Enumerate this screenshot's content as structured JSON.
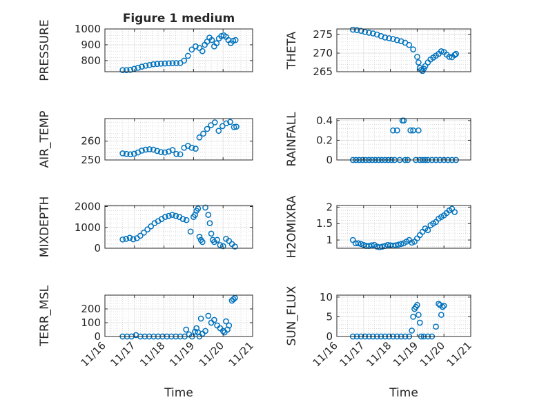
{
  "title": "Figure 1 medium",
  "colors": {
    "marker": "#0072BD",
    "axis": "#262626",
    "grid": "#c8c8c8",
    "background": "#ffffff"
  },
  "x_axis": {
    "label": "Time",
    "ticks": [
      "11/16",
      "11/17",
      "11/18",
      "11/19",
      "11/20",
      "11/21"
    ]
  },
  "chart_data": [
    {
      "type": "scatter",
      "title": "Figure 1 medium",
      "ylabel": "PRESSURE",
      "xlabel": "",
      "ylim": [
        730,
        1000
      ],
      "yticks": [
        800,
        900,
        1000
      ],
      "series": [
        {
          "x": [
            0.6,
            0.73,
            0.86,
            0.99,
            1.12,
            1.25,
            1.38,
            1.51,
            1.64,
            1.77,
            1.9,
            2.03,
            2.16,
            2.29,
            2.42,
            2.55,
            2.68,
            2.81,
            2.94,
            3.07,
            3.2,
            3.3,
            3.38,
            3.46,
            3.54,
            3.62,
            3.7,
            3.78,
            3.86,
            3.94,
            4.02,
            4.1,
            4.18,
            4.26,
            4.34,
            4.42
          ],
          "values": [
            740,
            740,
            742,
            748,
            755,
            762,
            768,
            772,
            777,
            779,
            781,
            782,
            783,
            784,
            784,
            785,
            800,
            830,
            870,
            890,
            880,
            860,
            900,
            920,
            945,
            930,
            890,
            910,
            940,
            955,
            960,
            950,
            930,
            910,
            925,
            930
          ]
        }
      ]
    },
    {
      "type": "scatter",
      "ylabel": "THETA",
      "ylim": [
        265,
        276.5
      ],
      "yticks": [
        265,
        270,
        275
      ],
      "series": [
        {
          "x": [
            0.6,
            0.75,
            0.9,
            1.05,
            1.2,
            1.35,
            1.5,
            1.65,
            1.8,
            1.95,
            2.1,
            2.25,
            2.4,
            2.55,
            2.7,
            2.85,
            3.0,
            3.05,
            3.1,
            3.15,
            3.2,
            3.25,
            3.3,
            3.4,
            3.5,
            3.6,
            3.7,
            3.8,
            3.9,
            4.0,
            4.1,
            4.2,
            4.3,
            4.4,
            4.45
          ],
          "values": [
            276.3,
            276.2,
            276.0,
            275.7,
            275.5,
            275.3,
            275.0,
            274.6,
            274.2,
            274.0,
            273.8,
            273.5,
            273.2,
            272.8,
            272.2,
            271.0,
            269.0,
            267.5,
            266.0,
            265.5,
            265.2,
            265.8,
            266.5,
            267.5,
            268.3,
            268.8,
            269.3,
            269.8,
            270.5,
            270.3,
            269.6,
            269.0,
            268.9,
            269.5,
            269.8
          ]
        }
      ]
    },
    {
      "type": "scatter",
      "ylabel": "AIR_TEMP",
      "ylim": [
        250,
        272
      ],
      "yticks": [
        250,
        260
      ],
      "series": [
        {
          "x": [
            0.6,
            0.73,
            0.86,
            0.99,
            1.12,
            1.25,
            1.38,
            1.51,
            1.64,
            1.77,
            1.9,
            2.03,
            2.16,
            2.29,
            2.42,
            2.55,
            2.68,
            2.81,
            2.94,
            3.07,
            3.2,
            3.33,
            3.46,
            3.59,
            3.72,
            3.85,
            3.98,
            4.11,
            4.24,
            4.37,
            4.45
          ],
          "values": [
            253.5,
            253.2,
            253.0,
            253.3,
            254.0,
            255.0,
            255.5,
            255.7,
            255.5,
            254.8,
            254.2,
            254.0,
            254.5,
            255.3,
            253.2,
            253.0,
            256.5,
            257.5,
            256.5,
            256.0,
            262.0,
            264.0,
            266.5,
            268.5,
            270.0,
            265.5,
            268.0,
            269.5,
            270.2,
            267.5,
            267.7
          ]
        }
      ]
    },
    {
      "type": "scatter",
      "ylabel": "RAINFALL",
      "ylim": [
        0,
        0.42
      ],
      "yticks": [
        0,
        0.2,
        0.4
      ],
      "series": [
        {
          "x": [
            0.6,
            0.72,
            0.84,
            0.96,
            1.08,
            1.2,
            1.32,
            1.44,
            1.56,
            1.68,
            1.8,
            1.92,
            2.04,
            2.1,
            2.16,
            2.25,
            2.35,
            2.45,
            2.5,
            2.55,
            2.65,
            2.75,
            2.85,
            2.95,
            3.05,
            3.1,
            3.2,
            3.3,
            3.4,
            3.55,
            3.7,
            3.85,
            4.0,
            4.15,
            4.3,
            4.45
          ],
          "values": [
            0,
            0,
            0,
            0,
            0,
            0,
            0,
            0,
            0,
            0,
            0,
            0,
            0,
            0.3,
            0,
            0.3,
            0,
            0.4,
            0.4,
            0,
            0,
            0.3,
            0.3,
            0,
            0.3,
            0,
            0,
            0,
            0,
            0,
            0,
            0,
            0,
            0,
            0,
            0
          ]
        }
      ]
    },
    {
      "type": "scatter",
      "ylabel": "MIXDEPTH",
      "ylim": [
        0,
        2050
      ],
      "yticks": [
        0,
        1000,
        2000
      ],
      "series": [
        {
          "x": [
            0.6,
            0.72,
            0.84,
            0.96,
            1.08,
            1.2,
            1.32,
            1.44,
            1.56,
            1.68,
            1.8,
            1.92,
            2.04,
            2.16,
            2.28,
            2.4,
            2.52,
            2.64,
            2.76,
            2.9,
            3.0,
            3.05,
            3.1,
            3.15,
            3.2,
            3.25,
            3.3,
            3.4,
            3.5,
            3.55,
            3.6,
            3.65,
            3.7,
            3.8,
            3.9,
            4.0,
            4.1,
            4.2,
            4.3,
            4.4
          ],
          "values": [
            420,
            450,
            500,
            430,
            480,
            600,
            750,
            900,
            1050,
            1200,
            1300,
            1400,
            1500,
            1550,
            1600,
            1550,
            1500,
            1400,
            1350,
            800,
            1500,
            1600,
            1800,
            1900,
            550,
            400,
            300,
            1950,
            1600,
            1200,
            700,
            400,
            300,
            400,
            150,
            100,
            450,
            350,
            200,
            80
          ]
        }
      ]
    },
    {
      "type": "scatter",
      "ylabel": "H2OMIXRA",
      "ylim": [
        0.75,
        2.05
      ],
      "yticks": [
        1,
        1.5,
        2
      ],
      "series": [
        {
          "x": [
            0.6,
            0.7,
            0.8,
            0.9,
            1.0,
            1.1,
            1.2,
            1.3,
            1.4,
            1.5,
            1.6,
            1.7,
            1.8,
            1.9,
            2.0,
            2.1,
            2.2,
            2.3,
            2.4,
            2.5,
            2.6,
            2.7,
            2.8,
            2.9,
            3.0,
            3.1,
            3.2,
            3.3,
            3.4,
            3.5,
            3.6,
            3.7,
            3.8,
            3.9,
            4.0,
            4.1,
            4.2,
            4.3,
            4.4
          ],
          "values": [
            1.0,
            0.9,
            0.9,
            0.88,
            0.85,
            0.82,
            0.82,
            0.84,
            0.85,
            0.8,
            0.78,
            0.8,
            0.82,
            0.85,
            0.84,
            0.83,
            0.84,
            0.86,
            0.88,
            0.9,
            0.95,
            1.0,
            0.92,
            0.95,
            1.05,
            1.15,
            1.25,
            1.35,
            1.3,
            1.45,
            1.5,
            1.55,
            1.65,
            1.7,
            1.75,
            1.82,
            1.9,
            1.95,
            1.85
          ]
        }
      ]
    },
    {
      "type": "scatter",
      "ylabel": "TERR_MSL",
      "ylim": [
        0,
        300
      ],
      "yticks": [
        0,
        100,
        200
      ],
      "series": [
        {
          "x": [
            0.6,
            0.75,
            0.9,
            1.05,
            1.2,
            1.35,
            1.5,
            1.65,
            1.8,
            1.95,
            2.1,
            2.25,
            2.4,
            2.55,
            2.7,
            2.75,
            2.85,
            2.95,
            3.05,
            3.1,
            3.15,
            3.2,
            3.25,
            3.3,
            3.4,
            3.5,
            3.6,
            3.7,
            3.8,
            3.9,
            4.0,
            4.05,
            4.1,
            4.15,
            4.2,
            4.3,
            4.35,
            4.4
          ],
          "values": [
            0,
            0,
            0,
            10,
            0,
            0,
            0,
            0,
            0,
            0,
            0,
            0,
            0,
            0,
            0,
            50,
            15,
            0,
            35,
            60,
            30,
            0,
            130,
            20,
            40,
            150,
            100,
            120,
            80,
            60,
            40,
            30,
            110,
            50,
            80,
            260,
            270,
            280
          ]
        }
      ]
    },
    {
      "type": "scatter",
      "ylabel": "SUN_FLUX",
      "ylim": [
        0,
        10.5
      ],
      "yticks": [
        0,
        5,
        10
      ],
      "series": [
        {
          "x": [
            0.6,
            0.75,
            0.9,
            1.05,
            1.2,
            1.35,
            1.5,
            1.65,
            1.8,
            1.95,
            2.1,
            2.25,
            2.4,
            2.55,
            2.7,
            2.8,
            2.85,
            2.9,
            2.95,
            3.0,
            3.05,
            3.1,
            3.15,
            3.25,
            3.4,
            3.55,
            3.7,
            3.8,
            3.85,
            3.9,
            3.95,
            4.0
          ],
          "values": [
            0,
            0,
            0,
            0,
            0,
            0,
            0,
            0,
            0,
            0,
            0,
            0,
            0,
            0,
            0,
            1.5,
            5,
            7,
            7.5,
            8,
            5.5,
            3.5,
            0,
            0,
            0,
            0,
            2.5,
            8.3,
            8,
            5.5,
            7.5,
            7.8
          ]
        }
      ]
    }
  ]
}
